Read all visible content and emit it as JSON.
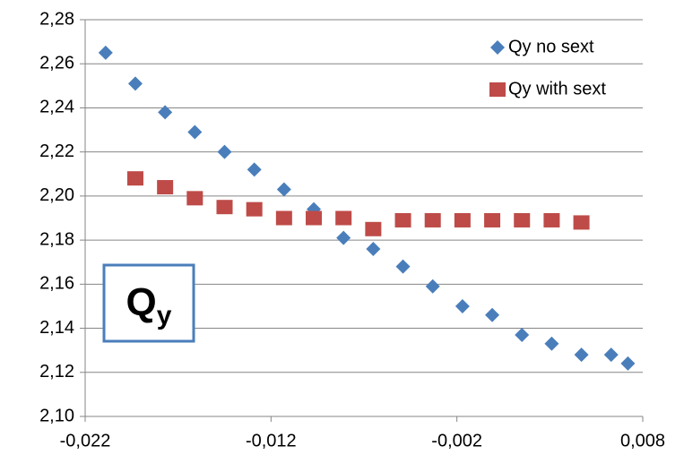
{
  "chart_data": {
    "type": "scatter",
    "annotation": {
      "text": "Q",
      "subscript": "y"
    },
    "xlim": [
      -0.022,
      0.008
    ],
    "xticks": [
      {
        "value": -0.022,
        "label": "-0,022"
      },
      {
        "value": -0.012,
        "label": "-0,012"
      },
      {
        "value": -0.002,
        "label": "-0,002"
      },
      {
        "value": 0.008,
        "label": "0,008"
      }
    ],
    "ylim": [
      2.1,
      2.28
    ],
    "yticks": [
      {
        "value": 2.1,
        "label": "2,10"
      },
      {
        "value": 2.12,
        "label": "2,12"
      },
      {
        "value": 2.14,
        "label": "2,14"
      },
      {
        "value": 2.16,
        "label": "2,16"
      },
      {
        "value": 2.18,
        "label": "2,18"
      },
      {
        "value": 2.2,
        "label": "2,20"
      },
      {
        "value": 2.22,
        "label": "2,22"
      },
      {
        "value": 2.24,
        "label": "2,24"
      },
      {
        "value": 2.26,
        "label": "2,26"
      },
      {
        "value": 2.28,
        "label": "2,28"
      }
    ],
    "grid": true,
    "legend": "top-right",
    "series": [
      {
        "name": "Qy no sext",
        "color": "#4a7ebb",
        "marker": "diamond",
        "x": [
          -0.0209,
          -0.0193,
          -0.0177,
          -0.0161,
          -0.0145,
          -0.0129,
          -0.0113,
          -0.0097,
          -0.0081,
          -0.0065,
          -0.0049,
          -0.0033,
          -0.0017,
          -0.0001,
          0.0015,
          0.0031,
          0.0047,
          0.0063,
          0.0072
        ],
        "values": [
          2.265,
          2.251,
          2.238,
          2.229,
          2.22,
          2.212,
          2.203,
          2.194,
          2.181,
          2.176,
          2.168,
          2.159,
          2.15,
          2.146,
          2.137,
          2.133,
          2.128,
          2.128,
          2.124
        ]
      },
      {
        "name": "Qy with sext",
        "color": "#be4b48",
        "marker": "square",
        "x": [
          -0.0193,
          -0.0177,
          -0.0161,
          -0.0145,
          -0.0129,
          -0.0113,
          -0.0097,
          -0.0081,
          -0.0065,
          -0.0049,
          -0.0033,
          -0.0017,
          -0.0001,
          0.0015,
          0.0031,
          0.0047
        ],
        "values": [
          2.208,
          2.204,
          2.199,
          2.195,
          2.194,
          2.19,
          2.19,
          2.19,
          2.185,
          2.189,
          2.189,
          2.189,
          2.189,
          2.189,
          2.189,
          2.188
        ]
      }
    ]
  }
}
